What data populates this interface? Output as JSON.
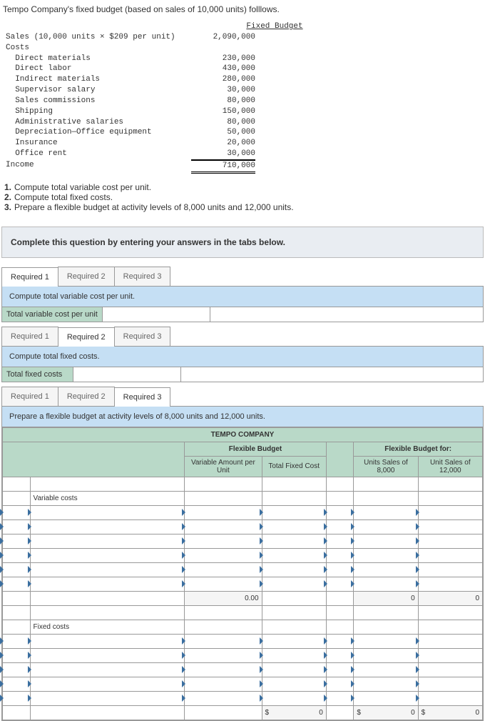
{
  "question_intro": "Tempo Company's fixed budget (based on sales of 10,000 units) folllows.",
  "budget": {
    "header": "Fixed Budget",
    "sales_label": "Sales (10,000 units × $209 per unit)",
    "sales_value": "2,090,000",
    "costs_label": "Costs",
    "lines": [
      {
        "label": "  Direct materials",
        "value": "230,000"
      },
      {
        "label": "  Direct labor",
        "value": "430,000"
      },
      {
        "label": "  Indirect materials",
        "value": "280,000"
      },
      {
        "label": "  Supervisor salary",
        "value": "30,000"
      },
      {
        "label": "  Sales commissions",
        "value": "80,000"
      },
      {
        "label": "  Shipping",
        "value": "150,000"
      },
      {
        "label": "  Administrative salaries",
        "value": "80,000"
      },
      {
        "label": "  Depreciation—Office equipment",
        "value": "50,000"
      },
      {
        "label": "  Insurance",
        "value": "20,000"
      },
      {
        "label": "  Office rent",
        "value": "30,000"
      }
    ],
    "income_label": "Income",
    "income_value": "710,000"
  },
  "instructions": [
    "Compute total variable cost per unit.",
    "Compute total fixed costs.",
    "Prepare a flexible budget at activity levels of 8,000 units and 12,000 units."
  ],
  "complete_prompt": "Complete this question by entering your answers in the tabs below.",
  "tabs": {
    "r1": "Required 1",
    "r2": "Required 2",
    "r3": "Required 3"
  },
  "sec1": {
    "banner": "Compute total variable cost per unit.",
    "row_label": "Total variable cost per unit"
  },
  "sec2": {
    "banner": "Compute total fixed costs.",
    "row_label": "Total fixed costs"
  },
  "sec3": {
    "banner": "Prepare a flexible budget at activity levels of 8,000 units and 12,000 units.",
    "company": "TEMPO COMPANY",
    "flex_head": "Flexible Budget",
    "flex_for_head": "Flexible Budget for:",
    "col_var": "Variable Amount per Unit",
    "col_fixed": "Total Fixed Cost",
    "col_8k": "Units Sales of 8,000",
    "col_12k": "Unit Sales of 12,000",
    "variable_costs_label": "Variable costs",
    "fixed_costs_label": "Fixed costs",
    "zero": "0",
    "zero_dec": "0.00",
    "dollar": "$"
  }
}
